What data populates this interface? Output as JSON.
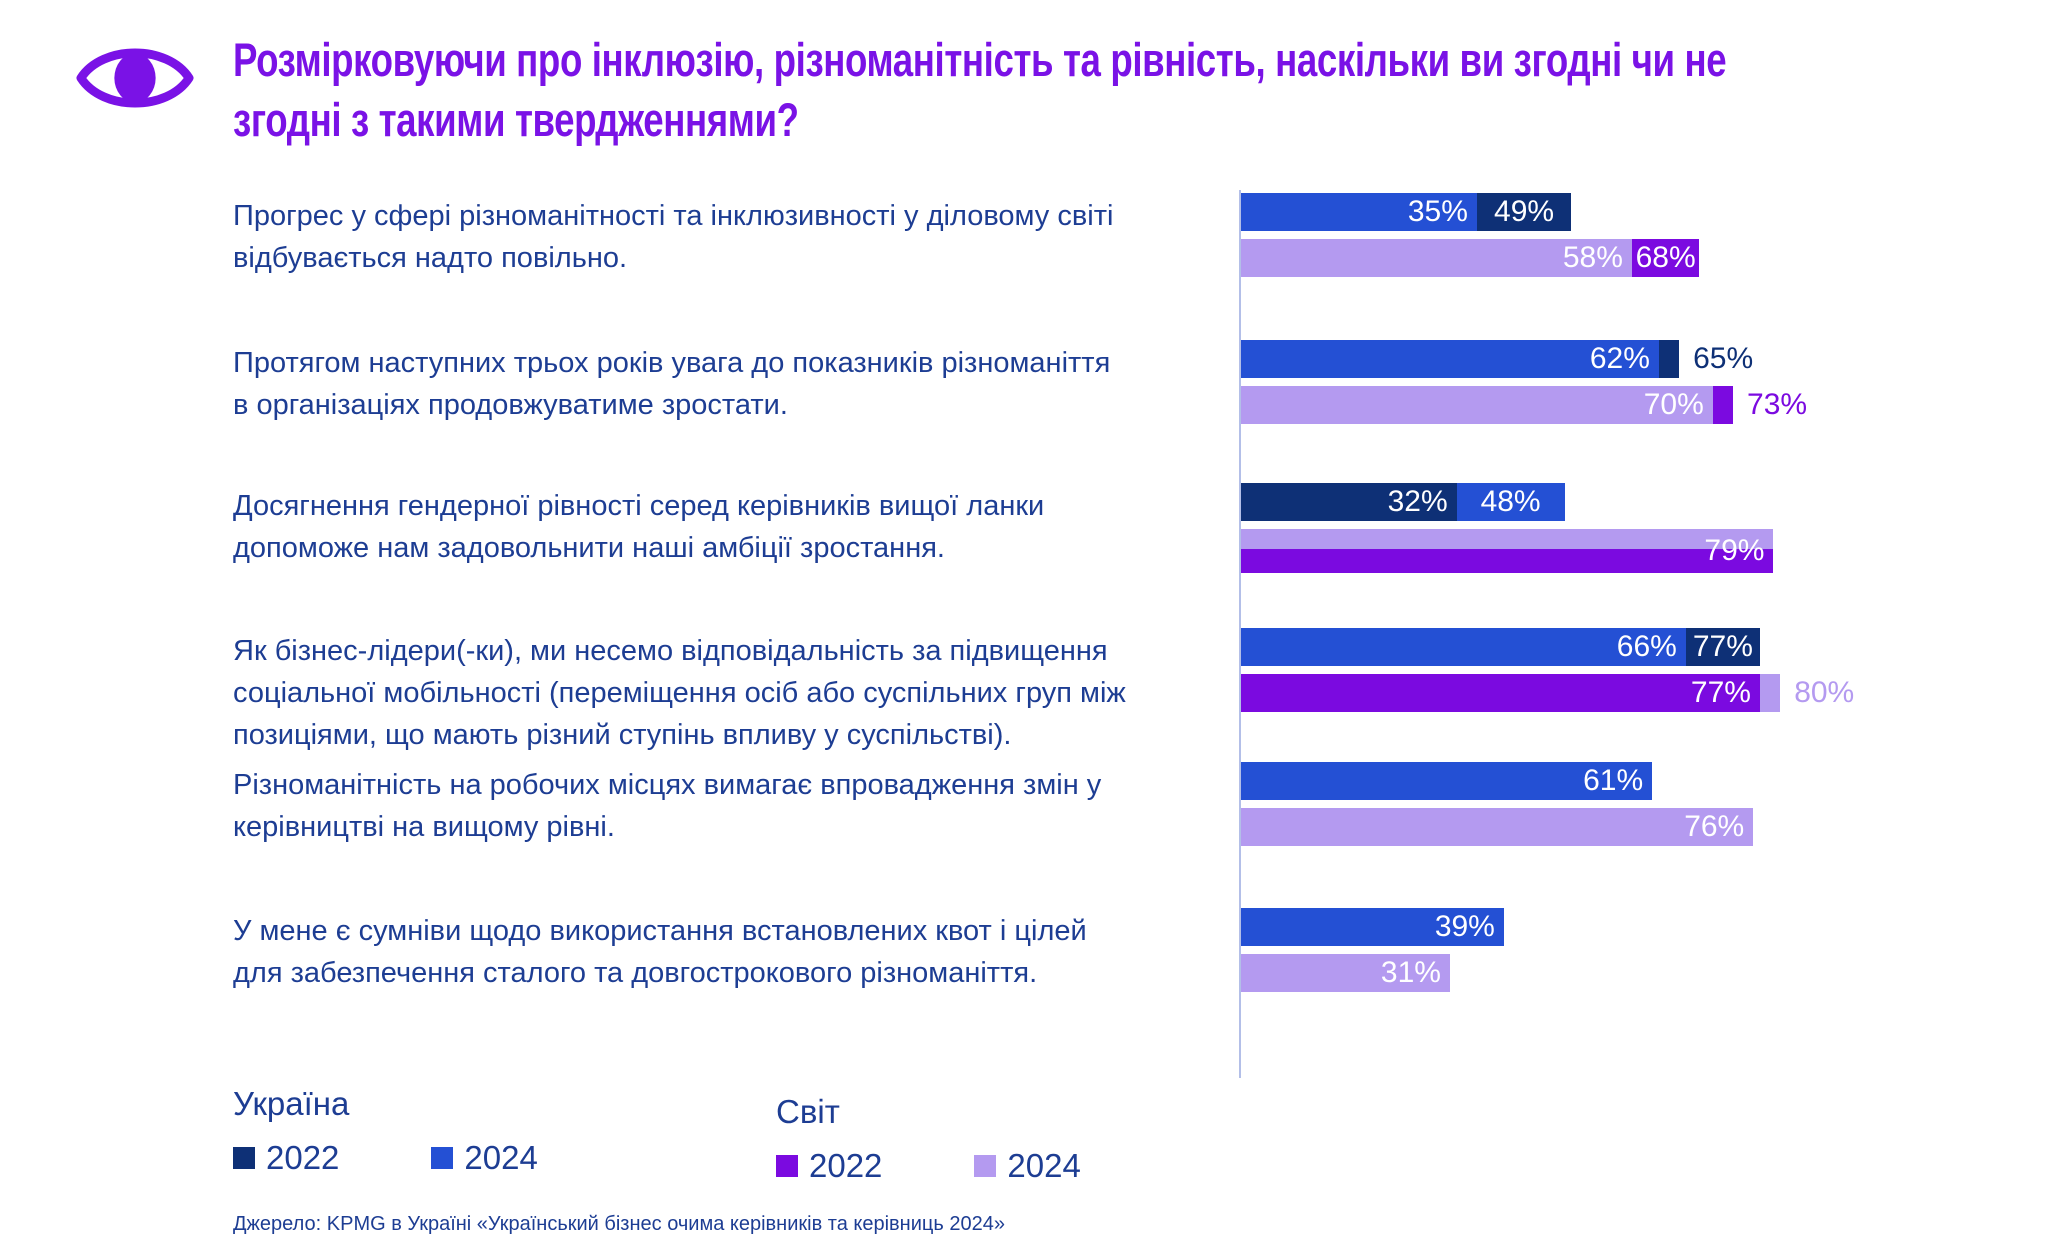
{
  "header": {
    "title_line1": "Розмірковуючи про інклюзію, різноманітність та рівність, наскільки ви згодні чи не",
    "title_line2": "згодні з такими твердженнями?"
  },
  "colors": {
    "ukraine_2022": "#0e3076",
    "ukraine_2024": "#2450d4",
    "world_2022": "#7b0ae0",
    "world_2024": "#b49af0",
    "accent_title": "#7a12e6",
    "text_navy": "#1d3d93",
    "axis_line": "#b3bfe8"
  },
  "chart_data": {
    "type": "bar",
    "orientation": "horizontal",
    "unit": "%",
    "xlim": [
      0,
      100
    ],
    "grid": false,
    "legend_position": "bottom",
    "title": "Розмірковуючи про інклюзію, різноманітність та рівність, наскільки ви згодні чи не згодні з такими твердженнями?",
    "categories": [
      "Прогрес у сфері різноманітності та інклюзивності у діловому світі\nвідбувається надто повільно.",
      "Протягом наступних трьох років увага до показників різноманіття\nв організаціях продовжуватиме зростати.",
      "Досягнення гендерної рівності серед керівників вищої ланки\nдопоможе нам задовольнити наші амбіції зростання.",
      "Як бізнес-лідери(-ки), ми несемо відповідальність за підвищення\nсоціальної мобільності (переміщення осіб або суспільних груп між\nпозиціями, що мають різний ступінь впливу у суспільстві).",
      "Різноманітність на робочих місцях вимагає впровадження змін у\nкерівництві на вищому рівні.",
      "У мене є сумніви щодо використання встановлених квот і цілей\nдля забезпечення сталого та довгострокового різноманіття."
    ],
    "series": [
      {
        "name": "Україна 2022",
        "color": "#0e3076",
        "values": [
          49,
          65,
          32,
          77,
          null,
          null
        ]
      },
      {
        "name": "Україна 2024",
        "color": "#2450d4",
        "values": [
          35,
          62,
          48,
          66,
          61,
          39
        ]
      },
      {
        "name": "Світ 2022",
        "color": "#7b0ae0",
        "values": [
          68,
          73,
          79,
          77,
          null,
          null
        ]
      },
      {
        "name": "Світ 2024",
        "color": "#b49af0",
        "values": [
          58,
          70,
          79,
          80,
          76,
          31
        ]
      }
    ],
    "rows": [
      {
        "ukraine": {
          "back": {
            "value": 49,
            "color": "#0e3076",
            "label": "49%",
            "label_pos": "inside"
          },
          "front": {
            "value": 35,
            "color": "#2450d4",
            "label": "35%",
            "label_pos": "inside"
          }
        },
        "world": {
          "back": {
            "value": 68,
            "color": "#7b0ae0",
            "label": "68%",
            "label_pos": "inside"
          },
          "front": {
            "value": 58,
            "color": "#b49af0",
            "label": "58%",
            "label_pos": "inside"
          }
        }
      },
      {
        "ukraine": {
          "back": {
            "value": 65,
            "color": "#0e3076",
            "label": "65%",
            "label_pos": "outside",
            "label_color": "#0e3076"
          },
          "front": {
            "value": 62,
            "color": "#2450d4",
            "label": "62%",
            "label_pos": "inside"
          }
        },
        "world": {
          "back": {
            "value": 73,
            "color": "#7b0ae0",
            "label": "73%",
            "label_pos": "outside",
            "label_color": "#7b0ae0"
          },
          "front": {
            "value": 70,
            "color": "#b49af0",
            "label": "70%",
            "label_pos": "inside"
          }
        }
      },
      {
        "ukraine": {
          "back": {
            "value": 48,
            "color": "#2450d4",
            "label": "48%",
            "label_pos": "inside"
          },
          "front": {
            "value": 32,
            "color": "#0e3076",
            "label": "32%",
            "label_pos": "inside"
          }
        },
        "world": {
          "front": {
            "value": 79,
            "color": "split",
            "label": "79%",
            "label_pos": "inside"
          },
          "split": true
        }
      },
      {
        "ukraine": {
          "back": {
            "value": 77,
            "color": "#0e3076",
            "label": "77%",
            "label_pos": "inside"
          },
          "front": {
            "value": 66,
            "color": "#2450d4",
            "label": "66%",
            "label_pos": "inside"
          }
        },
        "world": {
          "back": {
            "value": 80,
            "color": "#b49af0",
            "label": "80%",
            "label_pos": "outside",
            "label_color": "#b49af0"
          },
          "front": {
            "value": 77,
            "color": "#7b0ae0",
            "label": "77%",
            "label_pos": "inside"
          }
        }
      },
      {
        "ukraine": {
          "front": {
            "value": 61,
            "color": "#2450d4",
            "label": "61%",
            "label_pos": "inside"
          }
        },
        "world": {
          "front": {
            "value": 76,
            "color": "#b49af0",
            "label": "76%",
            "label_pos": "inside"
          }
        }
      },
      {
        "ukraine": {
          "front": {
            "value": 39,
            "color": "#2450d4",
            "label": "39%",
            "label_pos": "inside"
          }
        },
        "world": {
          "front": {
            "value": 31,
            "color": "#b49af0",
            "label": "31%",
            "label_pos": "inside"
          }
        }
      }
    ]
  },
  "legend": {
    "groups": [
      {
        "title": "Україна",
        "items": [
          {
            "label": "2022",
            "color": "#0e3076"
          },
          {
            "label": "2024",
            "color": "#2450d4"
          }
        ]
      },
      {
        "title": "Світ",
        "items": [
          {
            "label": "2022",
            "color": "#7b0ae0"
          },
          {
            "label": "2024",
            "color": "#b49af0"
          }
        ]
      }
    ]
  },
  "source": "Джерело: KPMG в Україні «Український бізнес очима керівників та керівниць 2024»"
}
